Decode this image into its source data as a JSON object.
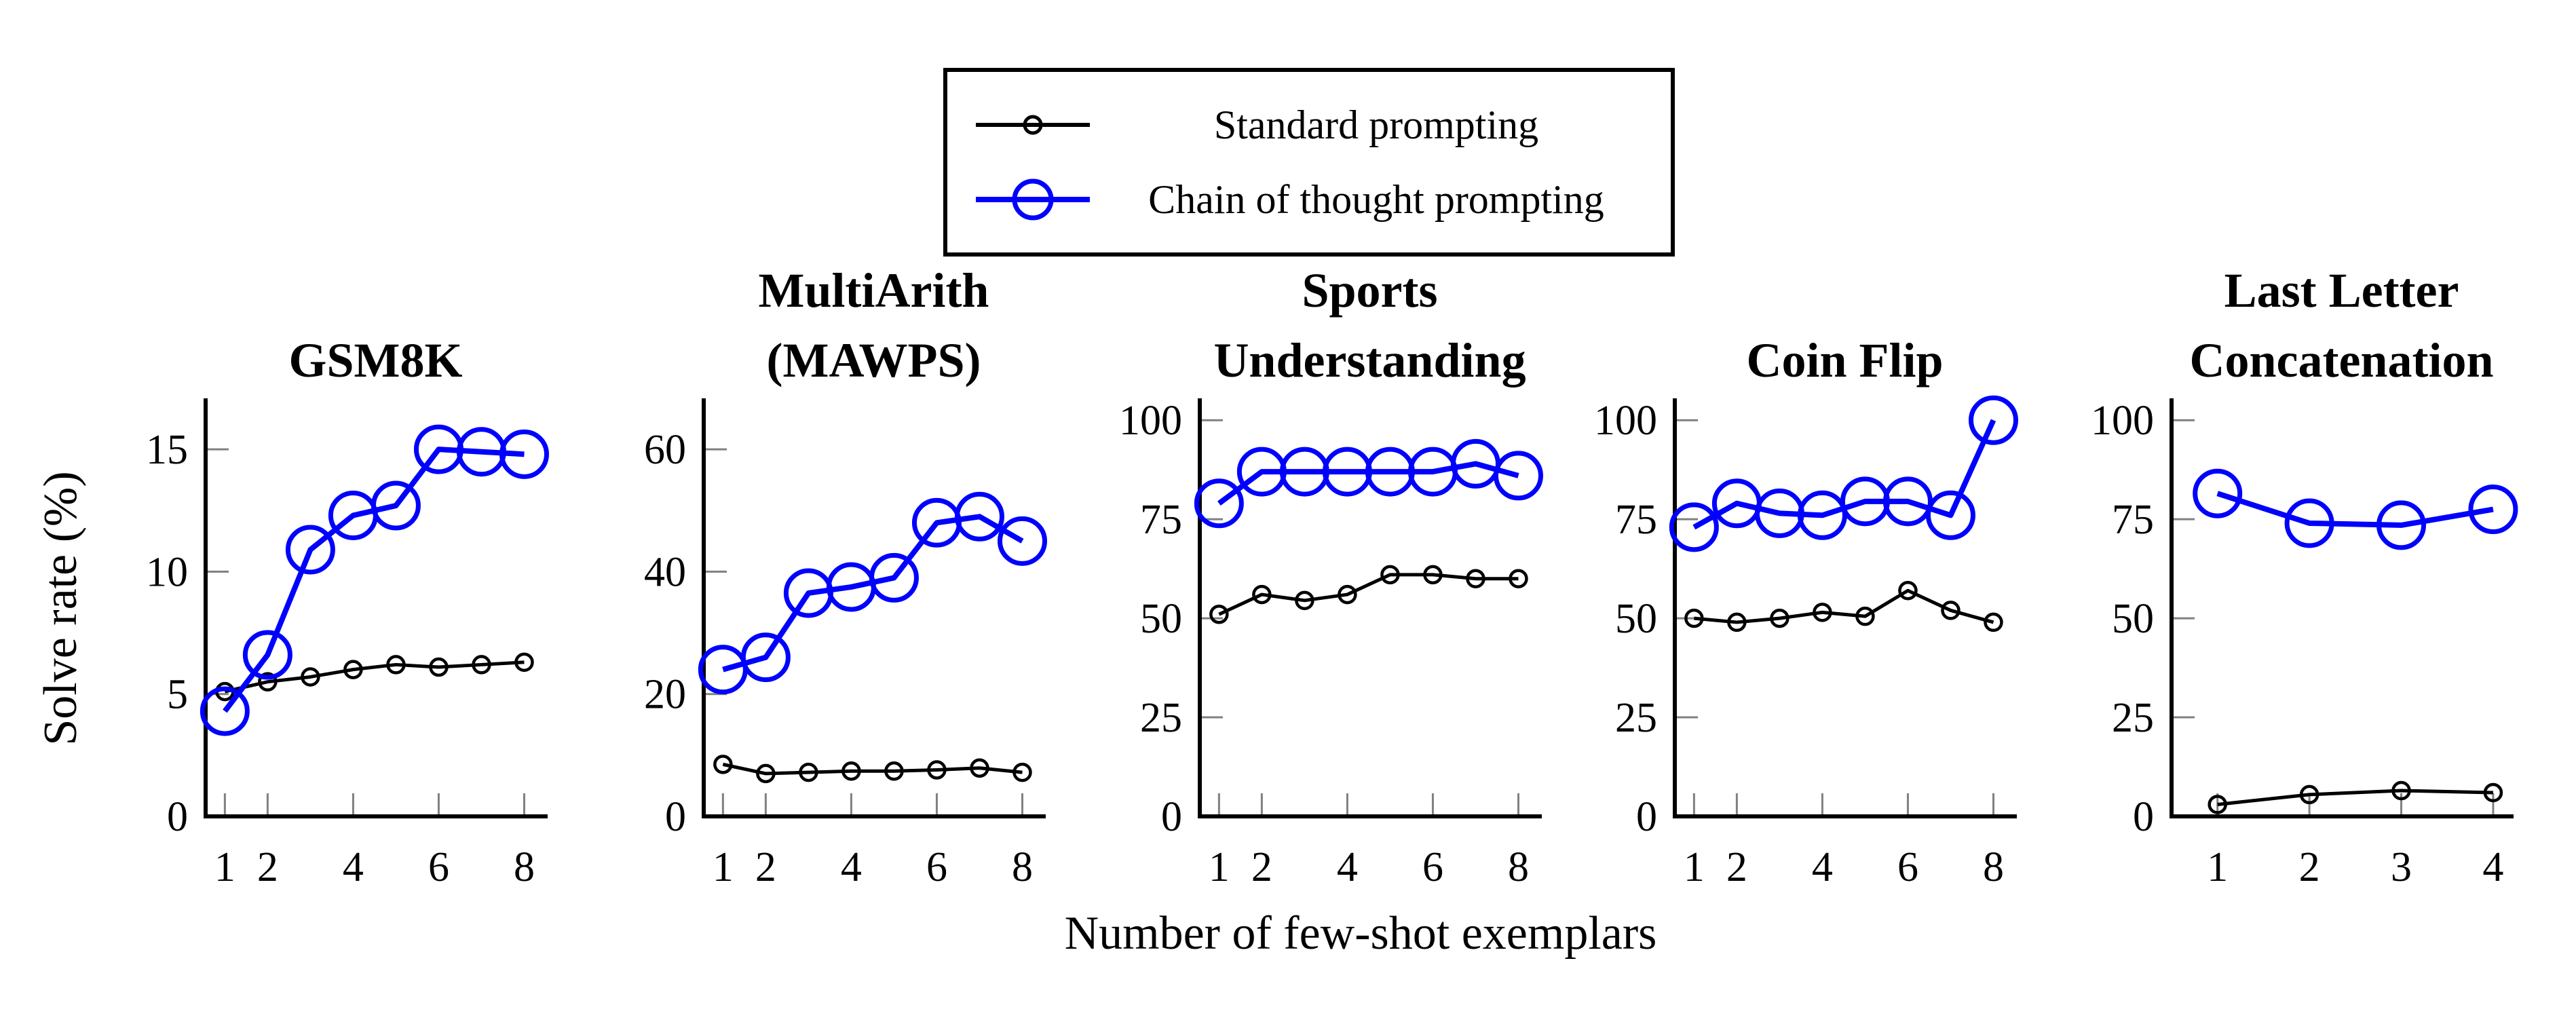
{
  "figure": {
    "xlabel": "Number of few-shot exemplars",
    "ylabel": "Solve rate (%)",
    "background": "#ffffff",
    "axis_color": "#000000",
    "tick_color": "#808080"
  },
  "legend": {
    "items": [
      {
        "key": "standard",
        "label": "Standard prompting",
        "color": "#000000"
      },
      {
        "key": "cot",
        "label": "Chain of thought prompting",
        "color": "#0000ff"
      }
    ]
  },
  "chart_data": [
    {
      "type": "line",
      "id": "gsm8k",
      "title_lines": [
        "GSM8K"
      ],
      "x": [
        1,
        2,
        3,
        4,
        5,
        6,
        7,
        8
      ],
      "xticks": [
        1,
        2,
        4,
        6,
        8
      ],
      "xlim": [
        0.55,
        8.5
      ],
      "yticks": [
        0,
        5,
        10,
        15
      ],
      "ylim": [
        0,
        17
      ],
      "series": [
        {
          "key": "standard",
          "name": "Standard prompting",
          "values": [
            5.1,
            5.5,
            5.7,
            6.0,
            6.2,
            6.1,
            6.2,
            6.3
          ]
        },
        {
          "key": "cot",
          "name": "Chain of thought prompting",
          "values": [
            4.3,
            6.6,
            10.9,
            12.3,
            12.7,
            15.0,
            14.9,
            14.8
          ]
        }
      ]
    },
    {
      "type": "line",
      "id": "multiarith-mawps",
      "title_lines": [
        "MultiArith",
        "(MAWPS)"
      ],
      "x": [
        1,
        2,
        3,
        4,
        5,
        6,
        7,
        8
      ],
      "xticks": [
        1,
        2,
        4,
        6,
        8
      ],
      "xlim": [
        0.55,
        8.5
      ],
      "yticks": [
        0,
        20,
        40,
        60
      ],
      "ylim": [
        0,
        68
      ],
      "series": [
        {
          "key": "standard",
          "name": "Standard prompting",
          "values": [
            8.5,
            7.0,
            7.2,
            7.4,
            7.4,
            7.6,
            7.9,
            7.2
          ]
        },
        {
          "key": "cot",
          "name": "Chain of thought prompting",
          "values": [
            24,
            26,
            36.5,
            37.5,
            39,
            48,
            49,
            45
          ]
        }
      ]
    },
    {
      "type": "line",
      "id": "sports-understanding",
      "title_lines": [
        "Sports",
        "Understanding"
      ],
      "x": [
        1,
        2,
        3,
        4,
        5,
        6,
        7,
        8
      ],
      "xticks": [
        1,
        2,
        4,
        6,
        8
      ],
      "xlim": [
        0.55,
        8.5
      ],
      "yticks": [
        0,
        25,
        50,
        75,
        100
      ],
      "ylim": [
        0,
        105
      ],
      "series": [
        {
          "key": "standard",
          "name": "Standard prompting",
          "values": [
            51,
            56,
            54.5,
            56,
            61,
            61,
            60,
            60
          ]
        },
        {
          "key": "cot",
          "name": "Chain of thought prompting",
          "values": [
            79,
            87,
            87,
            87,
            87,
            87,
            89,
            86
          ]
        }
      ]
    },
    {
      "type": "line",
      "id": "coin-flip",
      "title_lines": [
        "Coin Flip"
      ],
      "x": [
        1,
        2,
        3,
        4,
        5,
        6,
        7,
        8
      ],
      "xticks": [
        1,
        2,
        4,
        6,
        8
      ],
      "xlim": [
        0.55,
        8.5
      ],
      "yticks": [
        0,
        25,
        50,
        75,
        100
      ],
      "ylim": [
        0,
        105
      ],
      "series": [
        {
          "key": "standard",
          "name": "Standard prompting",
          "values": [
            50,
            49,
            50,
            51.5,
            50.5,
            57,
            52,
            49
          ]
        },
        {
          "key": "cot",
          "name": "Chain of thought prompting",
          "values": [
            73,
            79,
            76.5,
            76,
            79.5,
            79.5,
            76,
            100
          ]
        }
      ]
    },
    {
      "type": "line",
      "id": "last-letter-concatenation",
      "title_lines": [
        "Last Letter",
        "Concatenation"
      ],
      "x": [
        1,
        2,
        3,
        4
      ],
      "xticks": [
        1,
        2,
        3,
        4
      ],
      "xlim": [
        0.5,
        4.2
      ],
      "yticks": [
        0,
        25,
        50,
        75,
        100
      ],
      "ylim": [
        0,
        105
      ],
      "series": [
        {
          "key": "standard",
          "name": "Standard prompting",
          "values": [
            3,
            5.5,
            6.5,
            6
          ]
        },
        {
          "key": "cot",
          "name": "Chain of thought prompting",
          "values": [
            81.5,
            74,
            73.5,
            77.5
          ]
        }
      ]
    }
  ]
}
